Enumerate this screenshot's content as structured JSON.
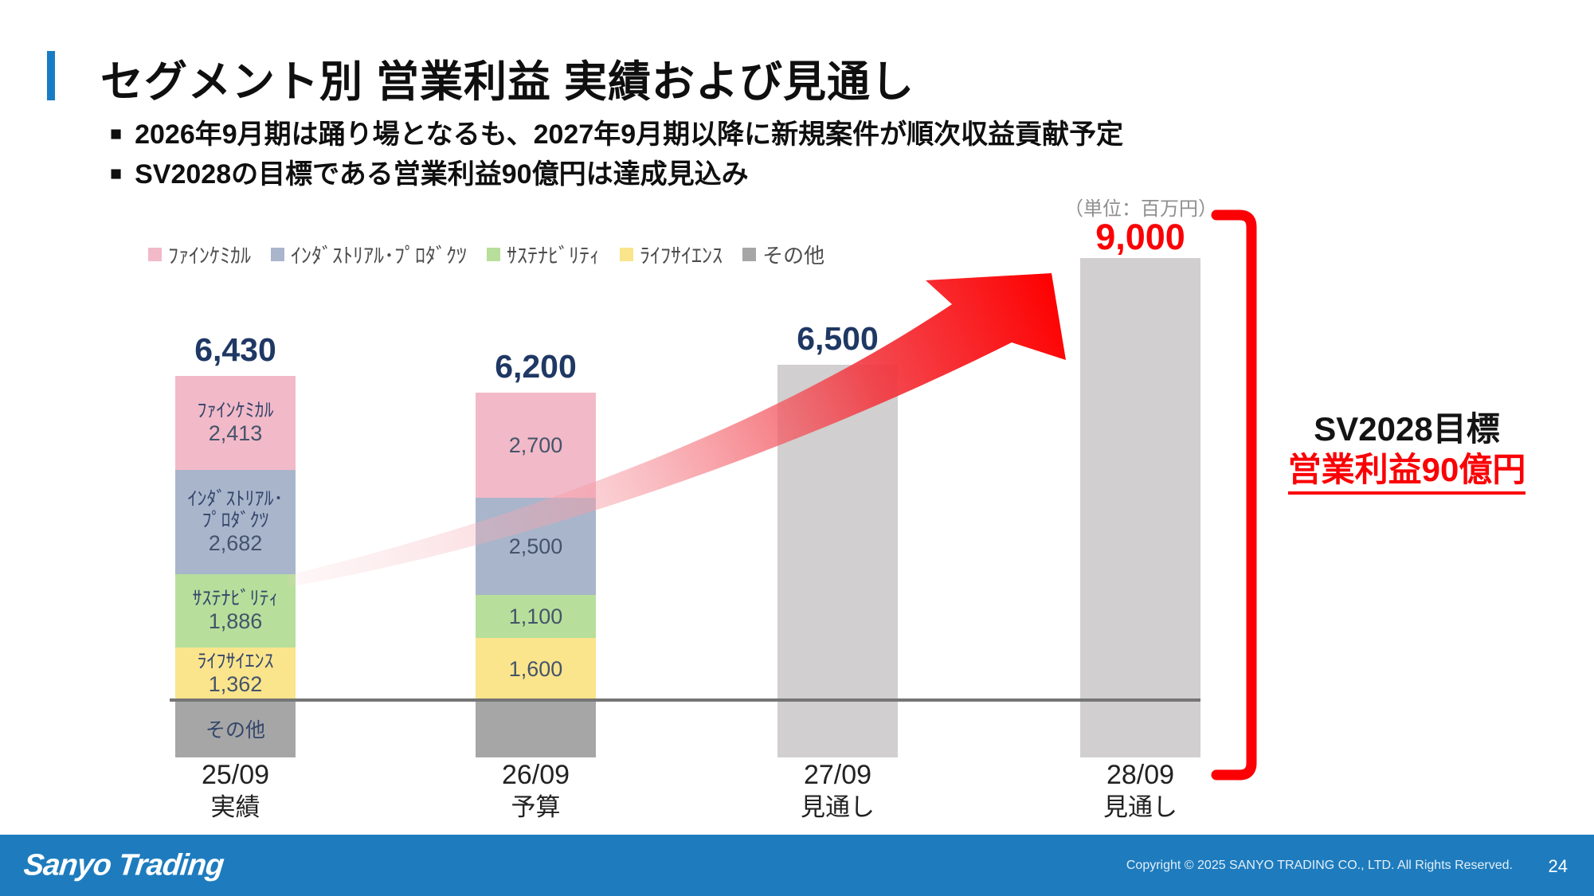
{
  "slide": {
    "title": "セグメント別 営業利益 実績および見通し",
    "bullet_marker": "■",
    "bullets": [
      "2026年9月期は踊り場となるも、2027年9月期以降に新規案件が順次収益貢献予定",
      "SV2028の目標である営業利益90億円は達成見込み"
    ],
    "unit_note": "（単位：百万円）",
    "goal": {
      "line1": "SV2028目標",
      "line2": "営業利益90億円"
    }
  },
  "chart_data": {
    "type": "bar",
    "subtype": "stacked",
    "unit": "百万円",
    "grid": false,
    "legend_position": "top-left",
    "legend": [
      {
        "label": "ﾌｧｲﾝｹﾐｶﾙ",
        "color": "#F2B9C8"
      },
      {
        "label": "ｲﾝﾀﾞｽﾄﾘｱﾙ･ﾌﾟﾛﾀﾞｸﾂ",
        "color": "#A9B5CB"
      },
      {
        "label": "ｻｽﾃﾅﾋﾞﾘﾃｨ",
        "color": "#B7DF9B"
      },
      {
        "label": "ﾗｲﾌｻｲｴﾝｽ",
        "color": "#FAE48C"
      },
      {
        "label": "その他",
        "color": "#A6A6A6"
      }
    ],
    "categories": [
      "25/09 実績",
      "26/09 予算",
      "27/09 見通し",
      "28/09 見通し"
    ],
    "bars": [
      {
        "x_line1": "25/09",
        "x_line2": "実績",
        "total": 6430,
        "total_label": "6,430",
        "segments": [
          {
            "name_lines": [
              "ﾌｧｲﾝｹﾐｶﾙ"
            ],
            "value": 2413,
            "value_label": "2,413",
            "color": "#F2B9C8"
          },
          {
            "name_lines": [
              "ｲﾝﾀﾞｽﾄﾘｱﾙ･",
              "ﾌﾟﾛﾀﾞｸﾂ"
            ],
            "value": 2682,
            "value_label": "2,682",
            "color": "#A9B5CB"
          },
          {
            "name_lines": [
              "ｻｽﾃﾅﾋﾞﾘﾃｨ"
            ],
            "value": 1886,
            "value_label": "1,886",
            "color": "#B7DF9B"
          },
          {
            "name_lines": [
              "ﾗｲﾌｻｲｴﾝｽ"
            ],
            "value": 1362,
            "value_label": "1,362",
            "color": "#FAE48C"
          }
        ],
        "below": {
          "label": "その他",
          "color": "#A6A6A6"
        }
      },
      {
        "x_line1": "26/09",
        "x_line2": "予算",
        "total": 6200,
        "total_label": "6,200",
        "segments": [
          {
            "name_lines": [],
            "value": 2700,
            "value_label": "2,700",
            "color": "#F2B9C8"
          },
          {
            "name_lines": [],
            "value": 2500,
            "value_label": "2,500",
            "color": "#A9B5CB"
          },
          {
            "name_lines": [],
            "value": 1100,
            "value_label": "1,100",
            "color": "#B7DF9B"
          },
          {
            "name_lines": [],
            "value": 1600,
            "value_label": "1,600",
            "color": "#FAE48C"
          }
        ],
        "below": {
          "label": "",
          "color": "#A6A6A6"
        }
      },
      {
        "x_line1": "27/09",
        "x_line2": "見通し",
        "total": 6500,
        "total_label": "6,500",
        "plain_color": "#D1CFCF",
        "below": {
          "label": "",
          "color": "#D1CFCF"
        }
      },
      {
        "x_line1": "28/09",
        "x_line2": "見通し",
        "total": 9000,
        "total_label": "9,000",
        "total_color": "#FB0005",
        "plain_color": "#D1CFCF",
        "below": {
          "label": "",
          "color": "#D1CFCF"
        }
      }
    ]
  },
  "footer": {
    "logo": "Sanyo Trading",
    "copyright": "Copyright © 2025 SANYO TRADING CO., LTD. All Rights Reserved.",
    "page": "24"
  }
}
